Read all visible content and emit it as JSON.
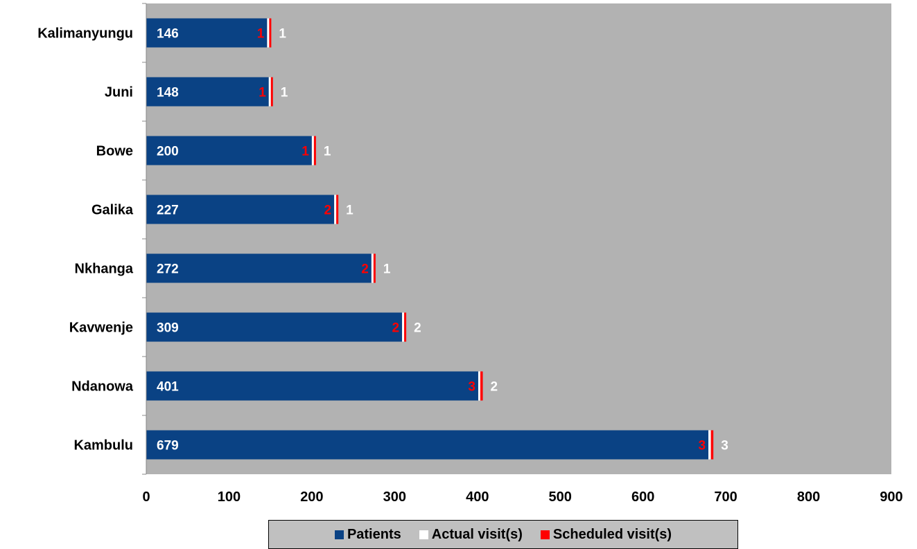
{
  "chart_data": {
    "type": "bar",
    "orientation": "horizontal",
    "stacked": true,
    "categories": [
      "Kalimanyungu",
      "Juni",
      "Bowe",
      "Galika",
      "Nkhanga",
      "Kavwenje",
      "Ndanowa",
      "Kambulu"
    ],
    "series": [
      {
        "name": "Patients",
        "values": [
          146,
          148,
          200,
          227,
          272,
          309,
          401,
          679
        ],
        "color": "#0a4284"
      },
      {
        "name": "Actual visit(s)",
        "values": [
          1,
          1,
          1,
          1,
          1,
          2,
          2,
          3
        ],
        "color": "#ffffff"
      },
      {
        "name": "Scheduled visit(s)",
        "values": [
          1,
          1,
          1,
          2,
          2,
          2,
          3,
          3
        ],
        "color": "#ff0000"
      }
    ],
    "xticks": [
      "0",
      "100",
      "200",
      "300",
      "400",
      "500",
      "600",
      "700",
      "800",
      "900"
    ],
    "xlim": [
      0,
      900
    ],
    "grid": false,
    "plot_background": "#b2b2b2",
    "legend_position": "bottom"
  }
}
